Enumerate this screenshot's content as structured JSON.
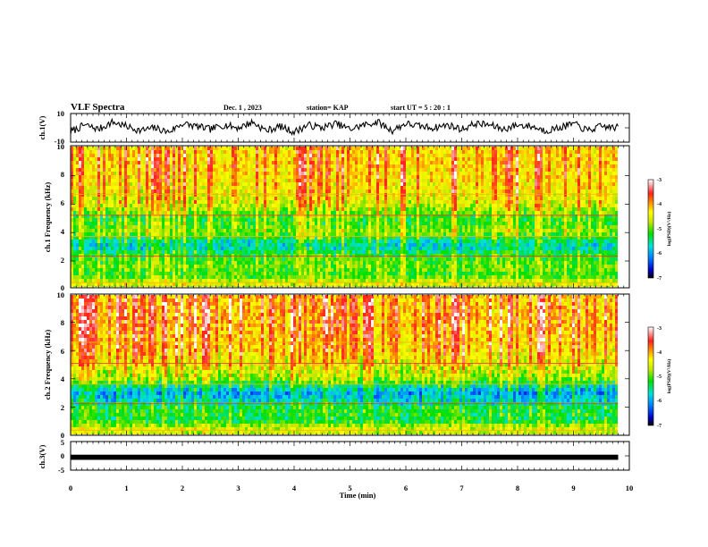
{
  "header": {
    "title": "VLF Spectra",
    "date": "Dec. 1 , 2023",
    "station": "station= KAP",
    "start": "start UT = 5 : 20 : 1"
  },
  "colors": {
    "spectrogram_scale": [
      "#000000",
      "#0000c8",
      "#0078ff",
      "#00e0e0",
      "#00e000",
      "#c8e600",
      "#ffff00",
      "#ff8c00",
      "#ff2020",
      "#ffffff"
    ],
    "waveform": "#000000",
    "frame": "#000000"
  },
  "chart_data": [
    {
      "type": "line",
      "panel": "ch1-waveform",
      "ylabel": "ch.1(V)",
      "ylim": [
        -10,
        10
      ],
      "yticks": [
        "10",
        "-10"
      ],
      "x_unit": "min",
      "x": [
        0.0,
        0.25,
        0.5,
        0.75,
        1.0,
        1.25,
        1.5,
        1.75,
        2.0,
        2.25,
        2.5,
        2.75,
        3.0,
        3.25,
        3.5,
        3.75,
        4.0,
        4.25,
        4.5,
        4.75,
        5.0,
        5.25,
        5.5,
        5.75,
        6.0,
        6.25,
        6.5,
        6.75,
        7.0,
        7.25,
        7.5,
        7.75,
        8.0,
        8.25,
        8.5,
        8.75,
        9.0,
        9.25,
        9.5,
        9.8
      ],
      "values": [
        -3,
        2,
        -1,
        4,
        1,
        -2,
        0,
        -3,
        3,
        1,
        -1,
        2,
        0,
        4,
        -2,
        1,
        -3,
        2,
        0,
        3,
        -1,
        2,
        4,
        -2,
        3,
        1,
        0,
        2,
        -1,
        3,
        2,
        -1,
        2,
        1,
        -2,
        0,
        3,
        -2,
        1,
        0
      ]
    },
    {
      "type": "heatmap",
      "panel": "ch1-spectrogram",
      "ylabel": "ch.1 Frequency (kHz)",
      "ylim": [
        0,
        10
      ],
      "yticks": [
        "0",
        "2",
        "4",
        "6",
        "8",
        "10"
      ],
      "x_range_min": [
        0,
        9.8
      ],
      "colorbar": {
        "label": "log(PSD)(V²/Hz)",
        "range": [
          -7,
          -3
        ],
        "ticks": [
          "-3",
          "-4",
          "-5",
          "-6",
          "-7"
        ]
      },
      "band_profile_khz": [
        0.5,
        1,
        1.5,
        2,
        2.5,
        3,
        3.5,
        4,
        4.5,
        5,
        6,
        7,
        8,
        9,
        10
      ],
      "band_profile_log_psd": [
        -4.6,
        -5.2,
        -5.0,
        -5.1,
        -5.3,
        -5.8,
        -5.5,
        -4.9,
        -5.1,
        -5.2,
        -4.6,
        -4.4,
        -4.3,
        -4.2,
        -4.3
      ]
    },
    {
      "type": "heatmap",
      "panel": "ch2-spectrogram",
      "ylabel": "ch.2 Frequency (kHz)",
      "ylim": [
        0,
        10
      ],
      "yticks": [
        "0",
        "2",
        "4",
        "6",
        "8",
        "10"
      ],
      "x_range_min": [
        0,
        9.8
      ],
      "colorbar": {
        "label": "log(PSD)(V²/Hz)",
        "range": [
          -7,
          -3
        ],
        "ticks": [
          "-3",
          "-4",
          "-5",
          "-6",
          "-7"
        ]
      },
      "band_profile_khz": [
        0.5,
        1,
        1.5,
        2,
        2.5,
        3,
        3.5,
        4,
        4.5,
        5,
        6,
        7,
        8,
        9,
        10
      ],
      "band_profile_log_psd": [
        -4.7,
        -5.4,
        -5.3,
        -5.4,
        -5.9,
        -6.1,
        -5.6,
        -4.9,
        -4.8,
        -4.6,
        -4.3,
        -4.2,
        -4.1,
        -4.1,
        -4.2
      ]
    },
    {
      "type": "line",
      "panel": "ch3-signal",
      "ylabel": "ch.3(V)",
      "ylim": [
        -5,
        5
      ],
      "yticks": [
        "5",
        "0",
        "-5"
      ],
      "x": [
        0,
        9.8
      ],
      "values": [
        -0.5,
        -0.5
      ],
      "line_spread_v": 0.9
    }
  ],
  "x_axis": {
    "label": "Time (min)",
    "range": [
      0,
      10
    ],
    "ticks": [
      "0",
      "1",
      "2",
      "3",
      "4",
      "5",
      "6",
      "7",
      "8",
      "9",
      "10"
    ]
  }
}
